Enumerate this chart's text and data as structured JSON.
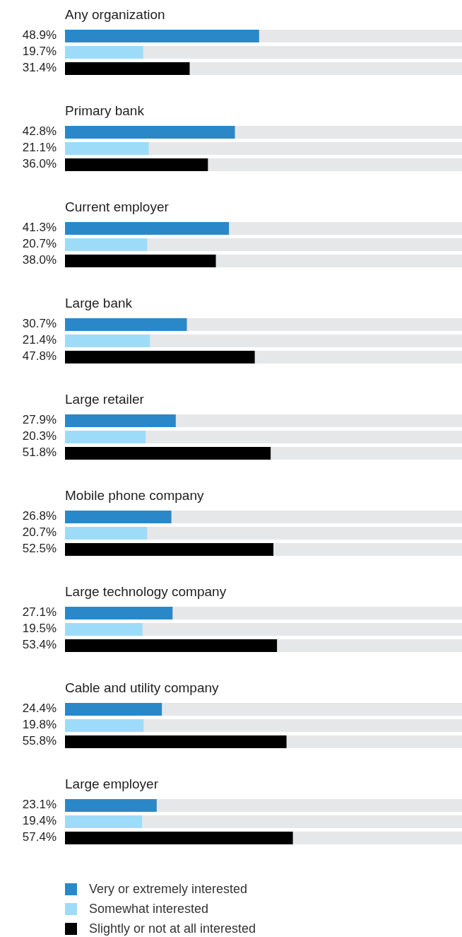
{
  "chart_data": {
    "type": "bar",
    "orientation": "horizontal",
    "categories": [
      "Any organization",
      "Primary bank",
      "Current employer",
      "Large bank",
      "Large retailer",
      "Mobile phone company",
      "Large technology company",
      "Cable and utility company",
      "Large employer"
    ],
    "series": [
      {
        "name": "Very or extremely interested",
        "color": "#2a88c8",
        "values": [
          48.9,
          42.8,
          41.3,
          30.7,
          27.9,
          26.8,
          27.1,
          24.4,
          23.1
        ],
        "value_labels": [
          "48.9%",
          "42.8%",
          "41.3%",
          "30.7%",
          "27.9%",
          "26.8%",
          "27.1%",
          "24.4%",
          "23.1%"
        ]
      },
      {
        "name": "Somewhat interested",
        "color": "#9ddcf9",
        "values": [
          19.7,
          21.1,
          20.7,
          21.4,
          20.3,
          20.7,
          19.5,
          19.8,
          19.4
        ],
        "value_labels": [
          "19.7%",
          "21.1%",
          "20.7%",
          "21.4%",
          "20.3%",
          "20.7%",
          "19.5%",
          "19.8%",
          "19.4%"
        ]
      },
      {
        "name": "Slightly or not at all interested",
        "color": "#000000",
        "values": [
          31.4,
          36.0,
          38.0,
          47.8,
          51.8,
          52.5,
          53.4,
          55.8,
          57.4
        ],
        "value_labels": [
          "31.4%",
          "36.0%",
          "38.0%",
          "47.8%",
          "51.8%",
          "52.5%",
          "53.4%",
          "55.8%",
          "57.4%"
        ]
      }
    ],
    "xlim": [
      0,
      100
    ],
    "tick_labels": "y",
    "legend": "bottom left"
  }
}
